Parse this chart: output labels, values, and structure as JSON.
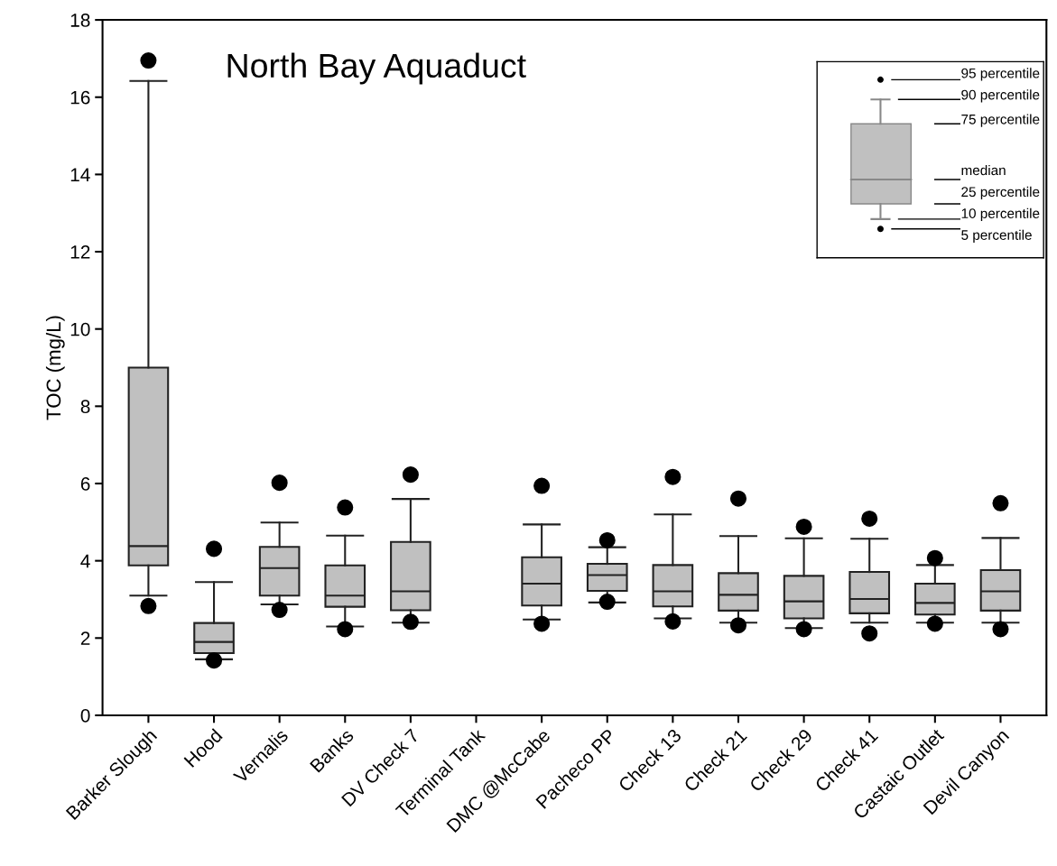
{
  "chart_data": {
    "type": "box",
    "title": "North Bay Aquaduct",
    "ylabel": "TOC (mg/L)",
    "categories": [
      "Barker Slough",
      "Hood",
      "Vernalis",
      "Banks",
      "DV Check 7",
      "Terminal Tank",
      "DMC @McCabe",
      "Pacheco PP",
      "Check 13",
      "Check 21",
      "Check 29",
      "Check 41",
      "Castaic Outlet",
      "Devil Canyon"
    ],
    "series": [
      {
        "color": "#c0c0c0",
        "boxes": [
          {
            "low": 3.1,
            "q1": 3.88,
            "median": 4.38,
            "q3": 9.0,
            "high": 16.42,
            "outliers": [
              2.83,
              16.95
            ]
          },
          {
            "low": 1.45,
            "q1": 1.61,
            "median": 1.9,
            "q3": 2.39,
            "high": 3.45,
            "outliers": [
              1.42,
              4.31
            ]
          },
          {
            "low": 2.87,
            "q1": 3.1,
            "median": 3.81,
            "q3": 4.36,
            "high": 4.99,
            "outliers": [
              2.73,
              6.02
            ]
          },
          {
            "low": 2.3,
            "q1": 2.81,
            "median": 3.1,
            "q3": 3.88,
            "high": 4.65,
            "outliers": [
              2.23,
              5.38
            ]
          },
          {
            "low": 2.4,
            "q1": 2.72,
            "median": 3.21,
            "q3": 4.49,
            "high": 5.6,
            "outliers": [
              2.42,
              6.23
            ]
          },
          null,
          {
            "low": 2.48,
            "q1": 2.84,
            "median": 3.41,
            "q3": 4.09,
            "high": 4.94,
            "outliers": [
              2.37,
              5.94
            ]
          },
          {
            "low": 2.92,
            "q1": 3.22,
            "median": 3.63,
            "q3": 3.92,
            "high": 4.35,
            "outliers": [
              2.94,
              4.53
            ]
          },
          {
            "low": 2.51,
            "q1": 2.82,
            "median": 3.21,
            "q3": 3.89,
            "high": 5.2,
            "outliers": [
              2.43,
              6.17
            ]
          },
          {
            "low": 2.4,
            "q1": 2.71,
            "median": 3.12,
            "q3": 3.68,
            "high": 4.64,
            "outliers": [
              2.33,
              5.61
            ]
          },
          {
            "low": 2.26,
            "q1": 2.51,
            "median": 2.95,
            "q3": 3.61,
            "high": 4.58,
            "outliers": [
              2.23,
              4.88
            ]
          },
          {
            "low": 2.4,
            "q1": 2.64,
            "median": 3.01,
            "q3": 3.71,
            "high": 4.57,
            "outliers": [
              2.12,
              5.09
            ]
          },
          {
            "low": 2.4,
            "q1": 2.61,
            "median": 2.91,
            "q3": 3.41,
            "high": 3.89,
            "outliers": [
              2.37,
              4.07
            ]
          },
          {
            "low": 2.4,
            "q1": 2.71,
            "median": 3.21,
            "q3": 3.76,
            "high": 4.59,
            "outliers": [
              2.23,
              5.49
            ]
          }
        ]
      }
    ],
    "ylim": [
      0,
      18
    ],
    "yticks": [
      0,
      2,
      4,
      6,
      8,
      10,
      12,
      14,
      16,
      18
    ],
    "annotations": [
      "95 percentile",
      "90 percentile",
      "75 percentile",
      "median",
      "25 percentile",
      "10 percentile",
      "5 percentile"
    ]
  }
}
